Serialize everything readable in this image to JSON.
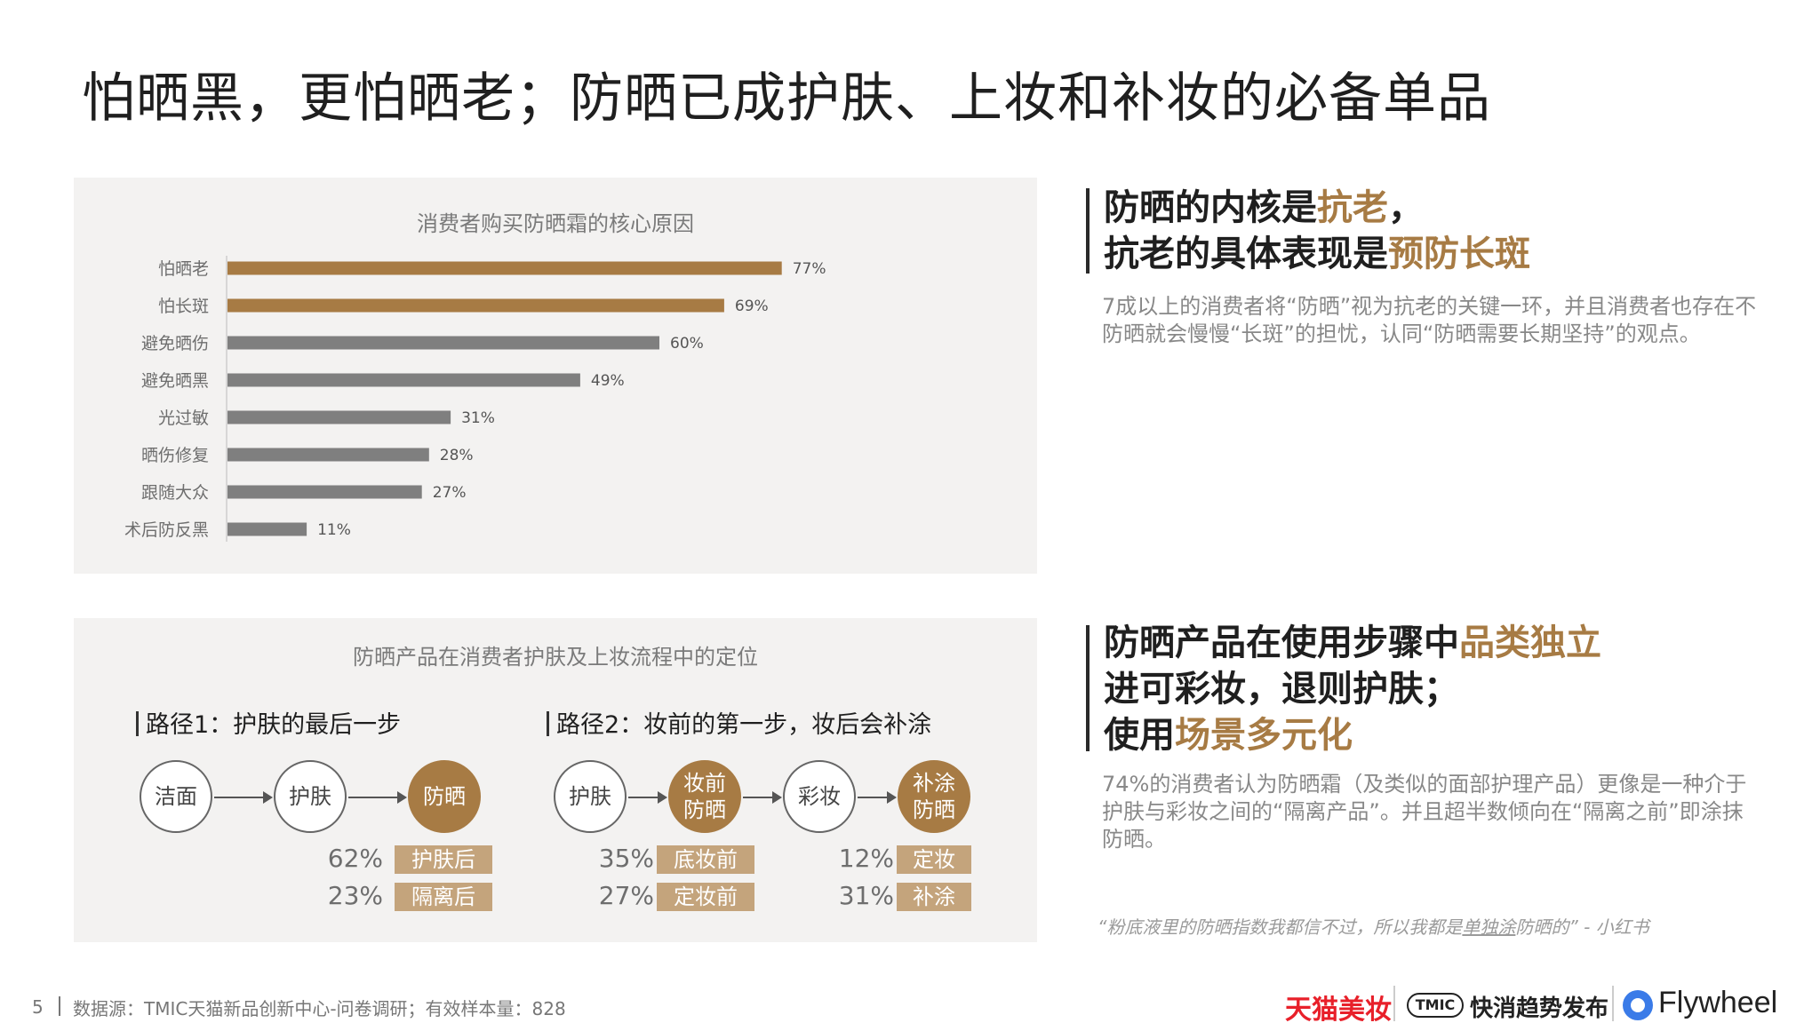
{
  "page_title": "怕晒黑，更怕晒老；防晒已成护肤、上妆和补妆的必备单品",
  "chart_data": {
    "type": "bar",
    "orientation": "horizontal",
    "title": "消费者购买防晒霜的核心原因",
    "categories": [
      "怕晒老",
      "怕长斑",
      "避免晒伤",
      "避免晒黑",
      "光过敏",
      "晒伤修复",
      "跟随大众",
      "术后防反黑"
    ],
    "values": [
      77,
      69,
      60,
      49,
      31,
      28,
      27,
      11
    ],
    "value_labels": [
      "77%",
      "69%",
      "60%",
      "49%",
      "31%",
      "28%",
      "27%",
      "11%"
    ],
    "xlim": [
      0,
      100
    ],
    "highlight_color": "#a77b44",
    "default_color": "#7f7f7f",
    "highlighted_count": 2
  },
  "flow": {
    "title": "防晒产品在消费者护肤及上妆流程中的定位",
    "path1": {
      "title": "路径1：护肤的最后一步",
      "steps": [
        "洁面",
        "护肤",
        "防晒"
      ],
      "stats": [
        {
          "pct": "62%",
          "label": "护肤后"
        },
        {
          "pct": "23%",
          "label": "隔离后"
        }
      ]
    },
    "path2": {
      "title": "路径2：妆前的第一步，妆后会补涂",
      "steps": [
        "护肤",
        "妆前\n防晒",
        "彩妆",
        "补涂\n防晒"
      ],
      "stats_a": [
        {
          "pct": "35%",
          "label": "底妆前"
        },
        {
          "pct": "27%",
          "label": "定妆前"
        }
      ],
      "stats_b": [
        {
          "pct": "12%",
          "label": "定妆"
        },
        {
          "pct": "31%",
          "label": "补涂"
        }
      ]
    }
  },
  "insight1": {
    "line1_a": "防晒的内核是",
    "line1_hl": "抗老",
    "line1_b": "，",
    "line2_a": "抗老的具体表现是",
    "line2_hl": "预防长斑",
    "body": "7成以上的消费者将“防晒”视为抗老的关键一环，并且消费者也存在不防晒就会慢慢“长斑”的担忧，认同“防晒需要长期坚持”的观点。"
  },
  "insight2": {
    "line1_a": "防晒产品在使用步骤中",
    "line1_hl": "品类独立",
    "line2": "进可彩妆，退则护肤；",
    "line3_a": "使用",
    "line3_hl": "场景多元化",
    "body": "74%的消费者认为防晒霜（及类似的面部护理产品）更像是一种介于护肤与彩妆之间的“隔离产品”。并且超半数倾向在“隔离之前”即涂抹防晒。"
  },
  "quote": {
    "a": "“粉底液里的防晒指数我都信不过，所以我都是",
    "u": "单独涂",
    "b": "防晒的”",
    "source": "- 小红书"
  },
  "footer": {
    "page_number": "5",
    "source": "数据源：TMIC天猫新品创新中心-问卷调研；有效样本量：828"
  },
  "logos": {
    "tmall": "天猫美妆",
    "tmic_badge": "TMIC",
    "tmic_text": "快消趋势发布",
    "flywheel": "Flywheel"
  }
}
